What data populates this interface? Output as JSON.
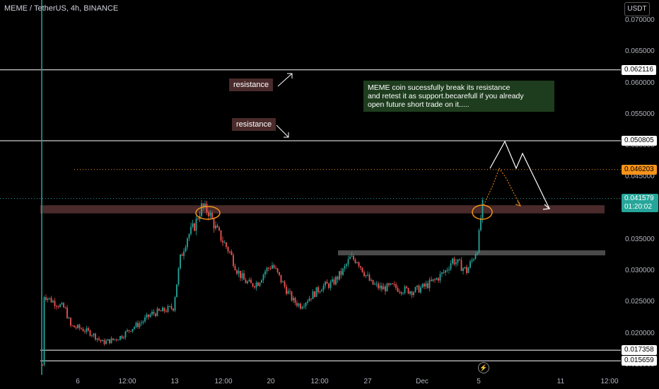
{
  "header": {
    "title": "MEME / TetherUS, 4h, BINANCE",
    "currency_button": "USDT"
  },
  "chart_data": {
    "type": "candlestick",
    "symbol": "MEME / TetherUS",
    "interval": "4h",
    "exchange": "BINANCE",
    "y_axis": {
      "ylim": [
        0.0148,
        0.0728
      ],
      "ticks": [
        "0.070000",
        "0.065000",
        "0.060000",
        "0.055000",
        "0.050000",
        "0.045000",
        "0.040000",
        "0.035000",
        "0.030000",
        "0.025000",
        "0.020000",
        "0.015000"
      ]
    },
    "x_axis": {
      "ticks": [
        "6",
        "12:00",
        "13",
        "12:00",
        "20",
        "12:00",
        "27",
        "Dec",
        "5",
        "11",
        "12:00"
      ]
    },
    "price_tags": [
      {
        "value": "0.062116",
        "style": "white"
      },
      {
        "value": "0.050805",
        "style": "white"
      },
      {
        "value": "0.046203",
        "style": "orange"
      },
      {
        "value": "0.041579",
        "countdown": "01:20:02",
        "style": "green"
      },
      {
        "value": "0.017358",
        "style": "white"
      },
      {
        "value": "0.015659",
        "style": "white"
      }
    ],
    "horizontal_lines": [
      0.062116,
      0.050805,
      0.017358,
      0.015659
    ],
    "dotted_line": 0.046203,
    "zones": [
      {
        "low": 0.0392,
        "high": 0.0405,
        "color": "#4a2a2a"
      },
      {
        "low": 0.0325,
        "high": 0.0333,
        "color": "#4a4a4a"
      }
    ],
    "annotations": {
      "resistance_1": "resistance",
      "resistance_2": "resistance",
      "note": "MEME coin sucessfully break its resistance\nand retest it as support.becarefull if you already\nopen future short trade on it....."
    },
    "colors": {
      "up": "#26a69a",
      "down": "#ef5350",
      "zone": "#4a2a2a",
      "orange": "#f7931a"
    }
  }
}
